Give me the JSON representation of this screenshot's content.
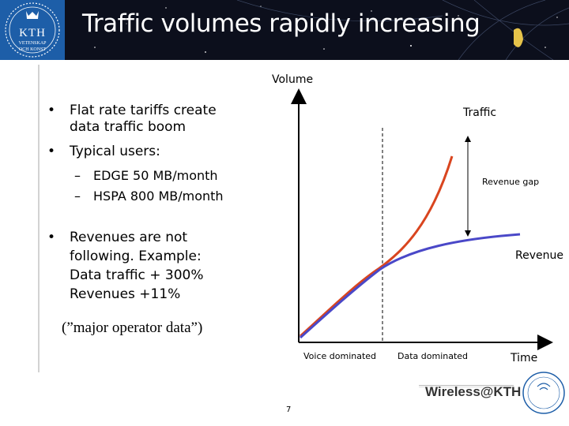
{
  "slide": {
    "title": "Traffic volumes rapidly increasing",
    "page_number": "7"
  },
  "logo": {
    "main": "KTH",
    "sub_line1": "VETENSKAP",
    "sub_line2": "OCH KONST"
  },
  "bullets": {
    "b1_line1": "Flat rate tariffs create",
    "b1_line2": "data traffic boom",
    "b2": "Typical users:",
    "sub1": "EDGE 50 MB/month",
    "sub2": "HSPA 800 MB/month",
    "b3_line1": "Revenues are not",
    "b3_line2": "following. Example:",
    "b3_line3": "Data traffic  + 300%",
    "b3_line4": "Revenues  +11%",
    "bullet_char": "•",
    "dash_char": "–"
  },
  "source_note": "(”major operator data”)",
  "chart_data": {
    "type": "line",
    "ylabel": "Volume",
    "xlabel": "Time",
    "series": [
      {
        "name": "Traffic",
        "color": "#d9451f"
      },
      {
        "name": "Revenue",
        "color": "#4a48c8"
      }
    ],
    "annotations": {
      "gap": "Revenue gap",
      "region_left": "Voice dominated",
      "region_right": "Data dominated"
    }
  },
  "footer": {
    "brand": "Wireless@KTH",
    "badge_text": "Center for Wireless Systems"
  }
}
